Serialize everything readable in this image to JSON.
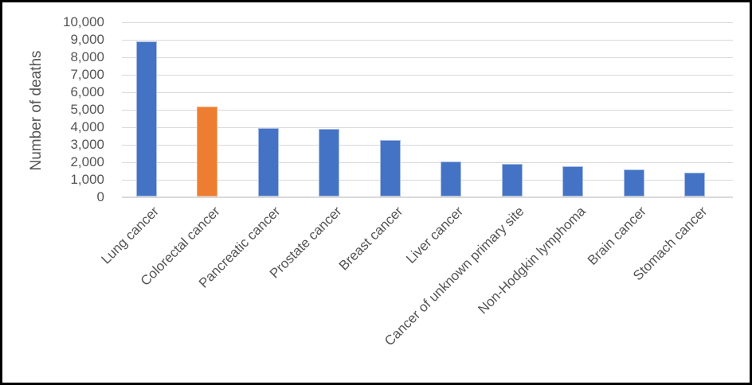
{
  "chart_data": {
    "type": "bar",
    "title": "",
    "xlabel": "",
    "ylabel": "Number of deaths",
    "ylim": [
      0,
      10000
    ],
    "ytick_step": 1000,
    "ytick_labels": [
      "0",
      "1,000",
      "2,000",
      "3,000",
      "4,000",
      "5,000",
      "6,000",
      "7,000",
      "8,000",
      "9,000",
      "10,000"
    ],
    "categories": [
      "Lung cancer",
      "Colorectal cancer",
      "Pancreatic cancer",
      "Prostate cancer",
      "Breast cancer",
      "Liver cancer",
      "Cancer of unknown primary site",
      "Non-Hodgkin lymphoma",
      "Brain cancer",
      "Stomach cancer"
    ],
    "values": [
      8850,
      5150,
      3900,
      3850,
      3250,
      2000,
      1850,
      1750,
      1550,
      1350
    ],
    "highlight_index": 1,
    "grid": true,
    "legend_position": "none",
    "colors": {
      "bar": "#4472C4",
      "bar_edge": "#A9BFE5",
      "highlight": "#ED7D31",
      "highlight_edge": "#F4AC78",
      "gridline": "#D9D9D9",
      "axis_line": "#D9D9D9",
      "text": "#545454"
    }
  }
}
